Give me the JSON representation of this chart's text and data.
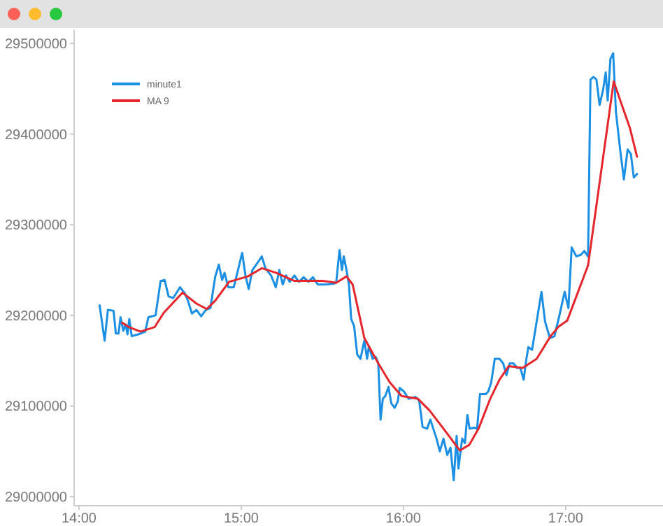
{
  "chart_data": {
    "type": "line",
    "xlim": [
      13.97,
      17.6
    ],
    "ylim": [
      28990000,
      29515000
    ],
    "xticks": [
      {
        "value": 14,
        "label": "14:00"
      },
      {
        "value": 15,
        "label": "15:00"
      },
      {
        "value": 16,
        "label": "16:00"
      },
      {
        "value": 17,
        "label": "17:00"
      }
    ],
    "yticks": [
      29000000,
      29100000,
      29200000,
      29300000,
      29400000,
      29500000
    ],
    "grid": false,
    "legend": "top left",
    "marker": "none",
    "line_style": "solid",
    "series": [
      {
        "name": "minute1",
        "color": "#1a8fe3",
        "x": [
          14.127,
          14.158,
          14.178,
          14.213,
          14.227,
          14.244,
          14.256,
          14.273,
          14.287,
          14.299,
          14.31,
          14.325,
          14.365,
          14.408,
          14.428,
          14.472,
          14.503,
          14.528,
          14.552,
          14.58,
          14.623,
          14.653,
          14.672,
          14.696,
          14.724,
          14.753,
          14.782,
          14.81,
          14.839,
          14.862,
          14.882,
          14.897,
          14.92,
          14.954,
          14.983,
          15.006,
          15.026,
          15.046,
          15.069,
          15.097,
          15.127,
          15.149,
          15.184,
          15.213,
          15.235,
          15.256,
          15.276,
          15.299,
          15.328,
          15.356,
          15.385,
          15.414,
          15.442,
          15.472,
          15.528,
          15.572,
          15.586,
          15.606,
          15.621,
          15.632,
          15.649,
          15.664,
          15.678,
          15.696,
          15.715,
          15.735,
          15.759,
          15.776,
          15.787,
          15.81,
          15.83,
          15.845,
          15.859,
          15.873,
          15.888,
          15.908,
          15.925,
          15.946,
          15.965,
          15.977,
          16.003,
          16.032,
          16.075,
          16.097,
          16.118,
          16.146,
          16.166,
          16.184,
          16.204,
          16.224,
          16.247,
          16.27,
          16.29,
          16.31,
          16.328,
          16.339,
          16.362,
          16.379,
          16.394,
          16.408,
          16.437,
          16.454,
          16.472,
          16.506,
          16.523,
          16.541,
          16.563,
          16.592,
          16.615,
          16.635,
          16.655,
          16.678,
          16.701,
          16.721,
          16.741,
          16.758,
          16.77,
          16.793,
          16.821,
          16.851,
          16.873,
          16.903,
          16.931,
          16.959,
          16.994,
          17.017,
          17.037,
          17.066,
          17.095,
          17.115,
          17.138,
          17.153,
          17.172,
          17.19,
          17.209,
          17.23,
          17.247,
          17.259,
          17.276,
          17.293,
          17.31,
          17.339,
          17.359,
          17.382,
          17.402,
          17.42,
          17.44
        ],
        "values": [
          29211000,
          29172000,
          29206000,
          29205000,
          29180000,
          29180000,
          29198000,
          29183000,
          29190000,
          29179000,
          29196000,
          29177000,
          29179000,
          29182000,
          29198000,
          29200000,
          29238000,
          29239000,
          29221000,
          29219000,
          29231000,
          29224000,
          29216000,
          29202000,
          29206000,
          29199000,
          29206000,
          29208000,
          29242000,
          29256000,
          29239000,
          29247000,
          29231000,
          29231000,
          29252000,
          29269000,
          29244000,
          29229000,
          29250000,
          29257000,
          29265000,
          29252000,
          29244000,
          29231000,
          29250000,
          29234000,
          29244000,
          29237000,
          29244000,
          29237000,
          29242000,
          29237000,
          29242000,
          29234000,
          29234000,
          29235000,
          29237000,
          29272000,
          29250000,
          29265000,
          29250000,
          29234000,
          29196000,
          29188000,
          29157000,
          29152000,
          29172000,
          29152000,
          29166000,
          29152000,
          29154000,
          29147000,
          29085000,
          29108000,
          29111000,
          29121000,
          29103000,
          29098000,
          29105000,
          29120000,
          29116000,
          29108000,
          29110000,
          29106000,
          29077000,
          29075000,
          29085000,
          29075000,
          29064000,
          29050000,
          29064000,
          29046000,
          29054000,
          29018000,
          29067000,
          29031000,
          29064000,
          29059000,
          29090000,
          29075000,
          29076000,
          29075000,
          29113000,
          29113000,
          29116000,
          29126000,
          29152000,
          29152000,
          29147000,
          29134000,
          29147000,
          29147000,
          29142000,
          29142000,
          29129000,
          29152000,
          29165000,
          29162000,
          29193000,
          29226000,
          29193000,
          29175000,
          29177000,
          29198000,
          29226000,
          29208000,
          29275000,
          29265000,
          29267000,
          29271000,
          29265000,
          29460000,
          29463000,
          29460000,
          29432000,
          29448000,
          29468000,
          29437000,
          29483000,
          29489000,
          29424000,
          29378000,
          29350000,
          29383000,
          29378000,
          29352000,
          29356000
        ]
      },
      {
        "name": "MA 9",
        "color": "#e5262c",
        "x": [
          14.265,
          14.308,
          14.379,
          14.466,
          14.523,
          14.638,
          14.724,
          14.787,
          14.839,
          14.925,
          15.041,
          15.127,
          15.213,
          15.328,
          15.5,
          15.586,
          15.649,
          15.687,
          15.759,
          15.845,
          15.916,
          15.989,
          16.089,
          16.161,
          16.247,
          16.347,
          16.405,
          16.463,
          16.535,
          16.592,
          16.649,
          16.735,
          16.821,
          16.907,
          16.959,
          17.009,
          17.138,
          17.296,
          17.397,
          17.44
        ],
        "values": [
          29192000,
          29187000,
          29182000,
          29187000,
          29203000,
          29225000,
          29213000,
          29207000,
          29216000,
          29237000,
          29243000,
          29252000,
          29247000,
          29238000,
          29238000,
          29236000,
          29243000,
          29234000,
          29175000,
          29147000,
          29126000,
          29111000,
          29108000,
          29095000,
          29075000,
          29051000,
          29057000,
          29075000,
          29108000,
          29129000,
          29144000,
          29142000,
          29152000,
          29177000,
          29188000,
          29194000,
          29255000,
          29458000,
          29406000,
          29375000
        ]
      }
    ]
  }
}
